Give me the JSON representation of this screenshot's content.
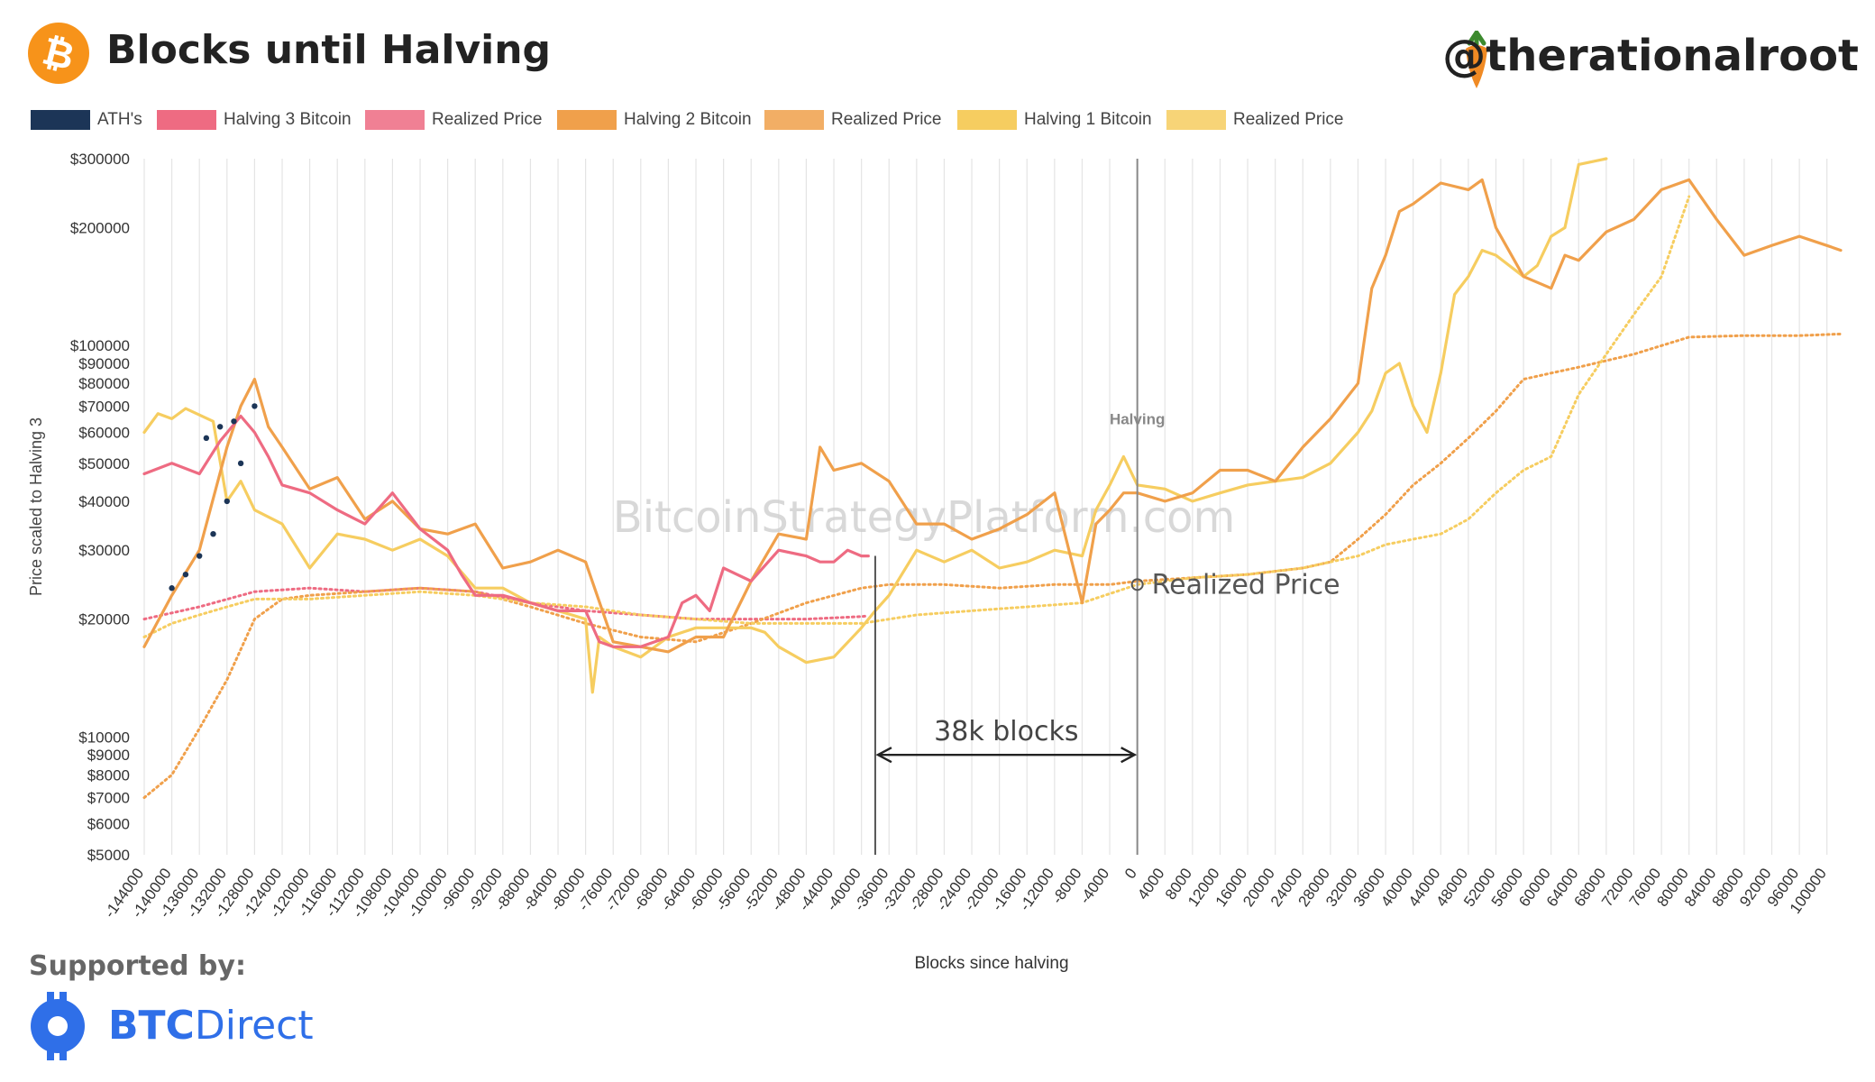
{
  "header": {
    "title": "Blocks until Halving",
    "handle": "@therationalroot"
  },
  "legend": [
    {
      "label": "ATH's",
      "color": "#1c3557",
      "style": "solid"
    },
    {
      "label": "Halving 3 Bitcoin",
      "color": "#ee6b82",
      "style": "solid"
    },
    {
      "label": "Realized Price",
      "color": "#ee6b82",
      "style": "dotted"
    },
    {
      "label": "Halving 2 Bitcoin",
      "color": "#f0a04b",
      "style": "solid"
    },
    {
      "label": "Realized Price",
      "color": "#f0a04b",
      "style": "dotted"
    },
    {
      "label": "Halving 1 Bitcoin",
      "color": "#f6cd60",
      "style": "solid"
    },
    {
      "label": "Realized Price",
      "color": "#f6cd60",
      "style": "dotted"
    }
  ],
  "chart_data": {
    "type": "line",
    "xlabel": "Blocks since halving",
    "ylabel": "Price scaled to Halving 3",
    "y_scale": "log",
    "ylim": [
      5000,
      300000
    ],
    "xlim": [
      -144000,
      102000
    ],
    "grid": "vertical",
    "x_ticks": [
      -144000,
      -140000,
      -136000,
      -132000,
      -128000,
      -124000,
      -120000,
      -116000,
      -112000,
      -108000,
      -104000,
      -100000,
      -96000,
      -92000,
      -88000,
      -84000,
      -80000,
      -76000,
      -72000,
      -68000,
      -64000,
      -60000,
      -56000,
      -52000,
      -48000,
      -44000,
      -40000,
      -36000,
      -32000,
      -28000,
      -24000,
      -20000,
      -16000,
      -12000,
      -8000,
      -4000,
      0,
      4000,
      8000,
      12000,
      16000,
      20000,
      24000,
      28000,
      32000,
      36000,
      40000,
      44000,
      48000,
      52000,
      56000,
      60000,
      64000,
      68000,
      72000,
      76000,
      80000,
      84000,
      88000,
      92000,
      96000,
      100000
    ],
    "y_ticks": [
      {
        "v": 300000,
        "label": "$300000"
      },
      {
        "v": 200000,
        "label": "$200000"
      },
      {
        "v": 100000,
        "label": "$100000"
      },
      {
        "v": 90000,
        "label": "$90000"
      },
      {
        "v": 80000,
        "label": "$80000"
      },
      {
        "v": 70000,
        "label": "$70000"
      },
      {
        "v": 60000,
        "label": "$60000"
      },
      {
        "v": 50000,
        "label": "$50000"
      },
      {
        "v": 40000,
        "label": "$40000"
      },
      {
        "v": 30000,
        "label": "$30000"
      },
      {
        "v": 20000,
        "label": "$20000"
      },
      {
        "v": 10000,
        "label": "$10000"
      },
      {
        "v": 9000,
        "label": "$9000"
      },
      {
        "v": 8000,
        "label": "$8000"
      },
      {
        "v": 7000,
        "label": "$7000"
      },
      {
        "v": 6000,
        "label": "$6000"
      },
      {
        "v": 5000,
        "label": "$5000"
      }
    ],
    "series": [
      {
        "name": "Halving 3 Bitcoin",
        "color": "#ee6b82",
        "style": "solid",
        "x": [
          -144000,
          -140000,
          -136000,
          -133000,
          -130000,
          -128000,
          -126000,
          -124000,
          -120000,
          -116000,
          -112000,
          -108000,
          -104000,
          -100000,
          -98000,
          -96000,
          -92000,
          -88000,
          -84000,
          -80000,
          -78000,
          -76000,
          -72000,
          -68000,
          -66000,
          -64000,
          -62000,
          -60000,
          -56000,
          -52000,
          -48000,
          -46000,
          -44000,
          -42000,
          -40000,
          -39000
        ],
        "y": [
          47000,
          50000,
          47000,
          57000,
          66000,
          60000,
          52000,
          44000,
          42000,
          38000,
          35000,
          42000,
          34000,
          30000,
          26000,
          23000,
          23000,
          22000,
          21000,
          21000,
          17500,
          17000,
          17000,
          18000,
          22000,
          23000,
          21000,
          27000,
          25000,
          30000,
          29000,
          28000,
          28000,
          30000,
          29000,
          29000
        ]
      },
      {
        "name": "Realized Price",
        "color": "#ee6b82",
        "style": "dotted",
        "x": [
          -144000,
          -136000,
          -128000,
          -120000,
          -112000,
          -104000,
          -96000,
          -88000,
          -80000,
          -72000,
          -64000,
          -56000,
          -48000,
          -40000,
          -39000
        ],
        "y": [
          20000,
          21500,
          23500,
          24000,
          23500,
          24000,
          23500,
          22000,
          21000,
          20500,
          20000,
          20000,
          20000,
          20300,
          20400
        ]
      },
      {
        "name": "Halving 2 Bitcoin",
        "color": "#f0a04b",
        "style": "solid",
        "x": [
          -144000,
          -140000,
          -136000,
          -132000,
          -130000,
          -128000,
          -126000,
          -124000,
          -120000,
          -116000,
          -112000,
          -108000,
          -104000,
          -100000,
          -96000,
          -92000,
          -88000,
          -84000,
          -80000,
          -76000,
          -72000,
          -68000,
          -64000,
          -60000,
          -56000,
          -52000,
          -48000,
          -46000,
          -44000,
          -40000,
          -36000,
          -32000,
          -28000,
          -24000,
          -20000,
          -16000,
          -12000,
          -8000,
          -6000,
          -4000,
          -2000,
          0,
          4000,
          8000,
          12000,
          16000,
          20000,
          24000,
          28000,
          32000,
          34000,
          36000,
          38000,
          40000,
          44000,
          48000,
          50000,
          52000,
          56000,
          60000,
          62000,
          64000,
          68000,
          72000,
          76000,
          80000,
          84000,
          88000,
          92000,
          96000,
          100000,
          102000
        ],
        "y": [
          17000,
          23000,
          30000,
          55000,
          70000,
          82000,
          62000,
          55000,
          43000,
          46000,
          36000,
          40000,
          34000,
          33000,
          35000,
          27000,
          28000,
          30000,
          28000,
          17500,
          17000,
          16500,
          18000,
          18000,
          25000,
          33000,
          32000,
          55000,
          48000,
          50000,
          45000,
          35000,
          35000,
          32000,
          34000,
          37000,
          42000,
          22000,
          35000,
          38000,
          42000,
          42000,
          40000,
          42000,
          48000,
          48000,
          45000,
          55000,
          65000,
          80000,
          140000,
          170000,
          220000,
          230000,
          260000,
          250000,
          265000,
          200000,
          150000,
          140000,
          170000,
          165000,
          195000,
          210000,
          250000,
          265000,
          210000,
          170000,
          180000,
          190000,
          180000,
          175000
        ]
      },
      {
        "name": "Realized Price",
        "color": "#f0a04b",
        "style": "dotted",
        "x": [
          -144000,
          -140000,
          -136000,
          -132000,
          -128000,
          -124000,
          -120000,
          -112000,
          -104000,
          -96000,
          -88000,
          -80000,
          -72000,
          -64000,
          -56000,
          -48000,
          -40000,
          -36000,
          -28000,
          -20000,
          -12000,
          -4000,
          0,
          8000,
          16000,
          24000,
          28000,
          32000,
          36000,
          40000,
          44000,
          48000,
          52000,
          56000,
          60000,
          64000,
          72000,
          80000,
          88000,
          96000,
          102000
        ],
        "y": [
          7000,
          8000,
          10500,
          14000,
          20000,
          22500,
          23000,
          23500,
          24000,
          23500,
          21500,
          19500,
          18000,
          17500,
          19500,
          22000,
          24000,
          24500,
          24500,
          24000,
          24500,
          24500,
          25000,
          25500,
          26000,
          27000,
          28000,
          32000,
          37000,
          44000,
          50000,
          58000,
          68000,
          82000,
          85000,
          88000,
          95000,
          105000,
          106000,
          106000,
          107000
        ]
      },
      {
        "name": "Halving 1 Bitcoin",
        "color": "#f6cd60",
        "style": "solid",
        "x": [
          -144000,
          -142000,
          -140000,
          -138000,
          -134000,
          -132000,
          -130000,
          -128000,
          -124000,
          -120000,
          -116000,
          -112000,
          -108000,
          -104000,
          -100000,
          -96000,
          -92000,
          -88000,
          -84000,
          -80000,
          -79000,
          -78000,
          -76000,
          -72000,
          -68000,
          -64000,
          -60000,
          -56000,
          -54000,
          -52000,
          -48000,
          -44000,
          -40000,
          -38000,
          -36000,
          -32000,
          -28000,
          -24000,
          -20000,
          -16000,
          -12000,
          -8000,
          -6000,
          -4000,
          -2000,
          0,
          4000,
          8000,
          12000,
          16000,
          20000,
          24000,
          28000,
          32000,
          34000,
          36000,
          38000,
          40000,
          42000,
          44000,
          46000,
          48000,
          50000,
          52000,
          56000,
          58000,
          60000,
          62000,
          64000,
          68000
        ],
        "y": [
          60000,
          67000,
          65000,
          69000,
          64000,
          40000,
          45000,
          38000,
          35000,
          27000,
          33000,
          32000,
          30000,
          32000,
          29000,
          24000,
          24000,
          22000,
          21000,
          20000,
          13000,
          18000,
          17000,
          16000,
          18000,
          19000,
          19000,
          19000,
          18500,
          17000,
          15500,
          16000,
          19000,
          21000,
          23000,
          30000,
          28000,
          30000,
          27000,
          28000,
          30000,
          29000,
          38000,
          44000,
          52000,
          44000,
          43000,
          40000,
          42000,
          44000,
          45000,
          46000,
          50000,
          60000,
          68000,
          85000,
          90000,
          70000,
          60000,
          85000,
          135000,
          150000,
          175000,
          170000,
          150000,
          160000,
          190000,
          200000,
          290000,
          300000
        ]
      },
      {
        "name": "Realized Price",
        "color": "#f6cd60",
        "style": "dotted",
        "x": [
          -144000,
          -140000,
          -136000,
          -132000,
          -128000,
          -120000,
          -112000,
          -104000,
          -96000,
          -88000,
          -80000,
          -72000,
          -64000,
          -56000,
          -48000,
          -40000,
          -32000,
          -24000,
          -16000,
          -8000,
          0,
          8000,
          16000,
          24000,
          28000,
          32000,
          36000,
          40000,
          44000,
          48000,
          52000,
          56000,
          60000,
          64000,
          68000,
          72000,
          76000,
          80000
        ],
        "y": [
          18000,
          19500,
          20500,
          21500,
          22500,
          22500,
          23000,
          23500,
          23000,
          22000,
          21500,
          20500,
          20000,
          19500,
          19500,
          19500,
          20500,
          21000,
          21500,
          22000,
          24500,
          25500,
          26000,
          27000,
          28000,
          29000,
          31000,
          32000,
          33000,
          36000,
          42000,
          48000,
          52000,
          75000,
          95000,
          120000,
          150000,
          240000
        ]
      }
    ],
    "ath_series": [
      {
        "name": "ATH's",
        "color": "#1c3557",
        "x": [
          -140000,
          -138000,
          -136000,
          -134000,
          -132000,
          -130000,
          -128000,
          -135000,
          -133000,
          -131000
        ],
        "y": [
          24000,
          26000,
          29000,
          33000,
          40000,
          50000,
          70000,
          58000,
          62000,
          64000
        ]
      }
    ],
    "annotations": {
      "halving_label": "Halving",
      "halving_x": 0,
      "realized_price_label": "Realized Price",
      "realized_price_marker": {
        "x": 0,
        "y": 24500
      },
      "span_label": "38k blocks",
      "span_from": -38000,
      "span_to": 0,
      "watermark": "BitcoinStrategyPlatform.com"
    }
  },
  "footer": {
    "supported_by": "Supported by:",
    "brand_bold": "BTC",
    "brand_light": "Direct"
  }
}
